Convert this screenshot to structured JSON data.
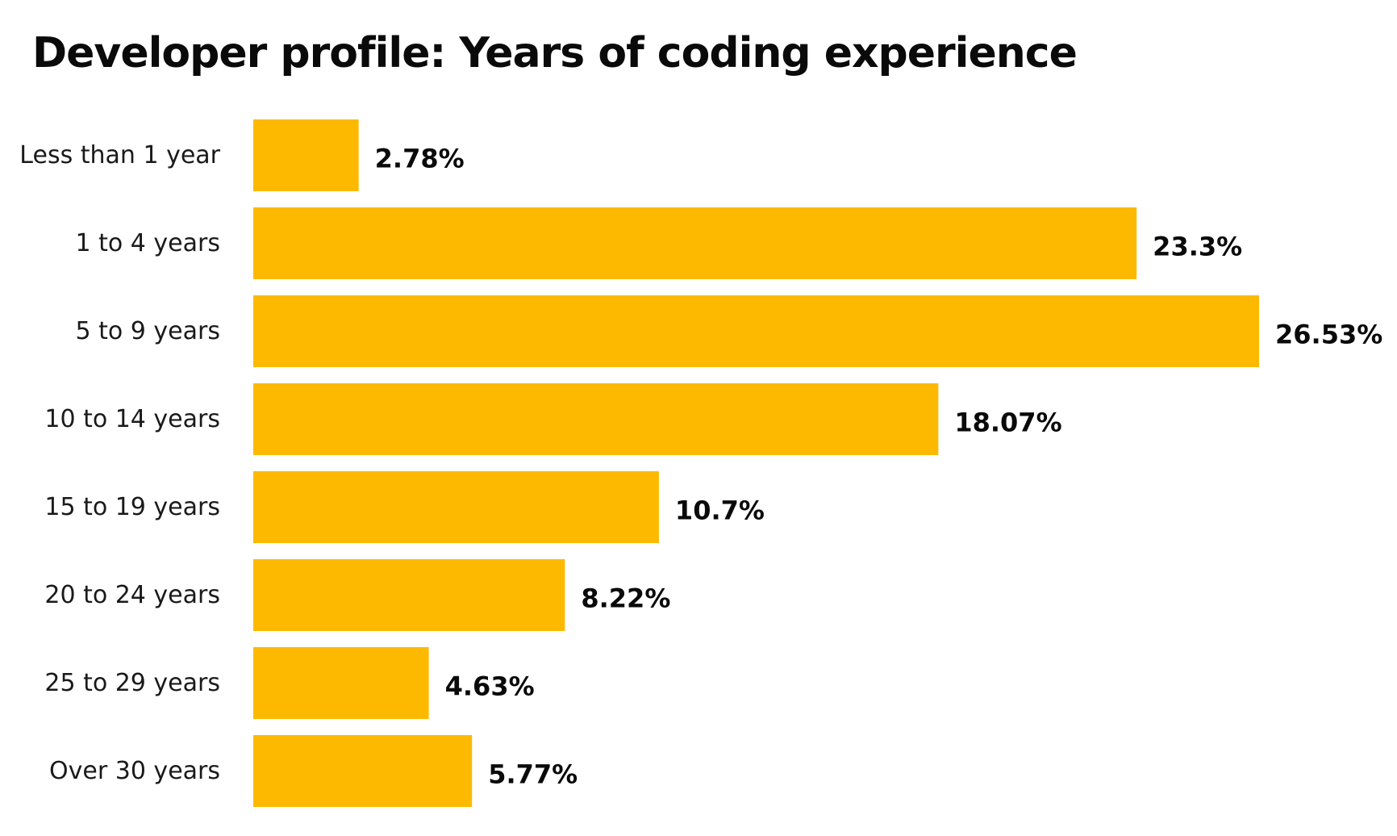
{
  "chart_data": {
    "type": "bar",
    "orientation": "horizontal",
    "title": "Developer profile: Years of coding experience",
    "xlabel": "",
    "ylabel": "",
    "categories": [
      "Less than 1 year",
      "1 to 4 years",
      "5 to 9 years",
      "10 to 14 years",
      "15 to 19 years",
      "20 to 24 years",
      "25 to 29 years",
      "Over 30 years"
    ],
    "values": [
      2.78,
      23.3,
      26.53,
      18.07,
      10.7,
      8.22,
      4.63,
      5.77
    ],
    "value_labels": [
      "2.78%",
      "23.3%",
      "26.53%",
      "18.07%",
      "10.7%",
      "8.22%",
      "4.63%",
      "5.77%"
    ],
    "xlim": [
      0,
      26.53
    ],
    "grid": false,
    "legend": "none",
    "bar_color": "#FDB900"
  }
}
